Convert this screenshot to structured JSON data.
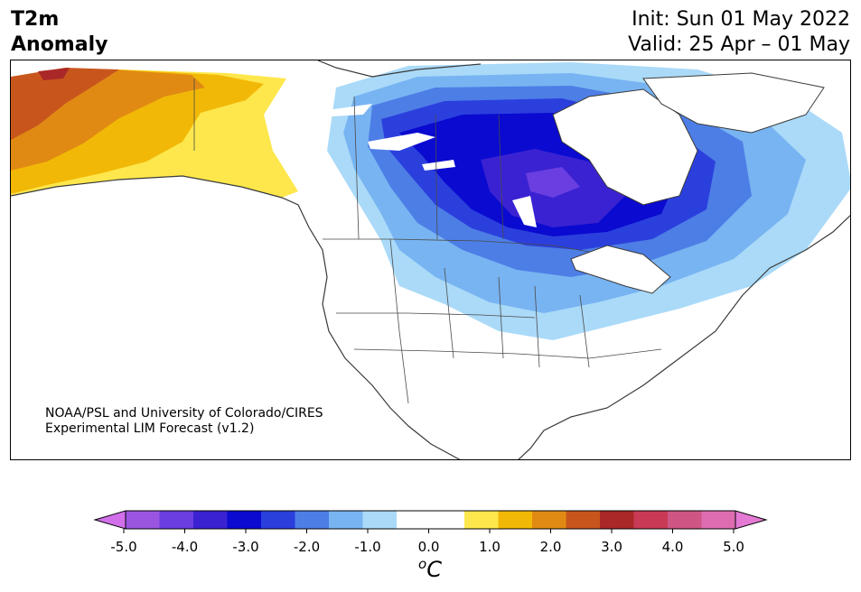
{
  "header": {
    "title_line1": "T2m",
    "title_line2": "Anomaly",
    "init_text": "Init: Sun 01 May 2022",
    "valid_text": "Valid: 25 Apr – 01 May"
  },
  "map": {
    "region": "North America",
    "credit_line1": "NOAA/PSL and University of Colorado/CIRES",
    "credit_line2": "Experimental LIM Forecast (v1.2)",
    "colors": {
      "warm_light": "#fde74c",
      "warm_mid": "#f2b807",
      "warm_dark": "#e08a14",
      "warm_darker": "#c8561c",
      "cool_lightest": "#aadaf8",
      "cool_light": "#78b4f2",
      "cool_mid": "#4d7ee6",
      "cool_dark": "#2b3fdd",
      "cool_darker": "#0a0ad0",
      "cool_darkest": "#3a22d2",
      "cool_violet": "#6a3ee0",
      "land_outline": "#3a3a3a"
    }
  },
  "colorbar": {
    "unit_base": "C",
    "unit_super": "o",
    "ticks": [
      "-5.0",
      "-4.0",
      "-3.0",
      "-2.0",
      "-1.0",
      "0.0",
      "1.0",
      "2.0",
      "3.0",
      "4.0",
      "5.0"
    ],
    "bins": [
      "#d26fea",
      "#9a55e0",
      "#6a3ee0",
      "#3a22d2",
      "#0a0ad0",
      "#2b3fdd",
      "#4d7ee6",
      "#78b4f2",
      "#aadaf8",
      "#ffffff",
      "#ffffff",
      "#fde74c",
      "#f2b807",
      "#e08a14",
      "#c8561c",
      "#ab2828",
      "#c83a55",
      "#cf5585",
      "#de6db0",
      "#e57ad4"
    ]
  }
}
